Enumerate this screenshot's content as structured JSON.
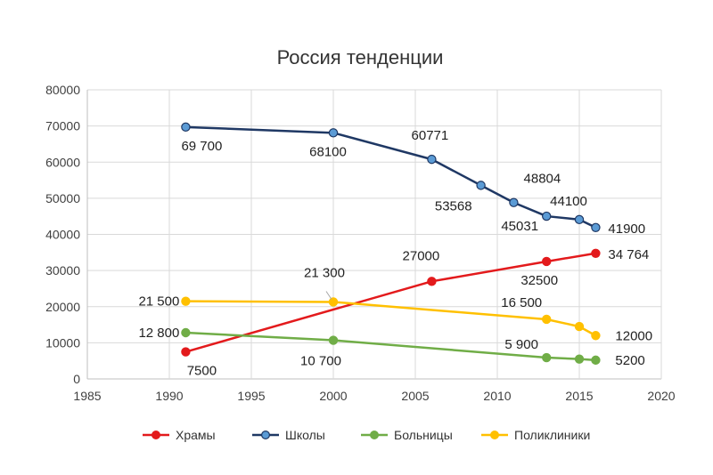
{
  "chart_data": {
    "type": "scatter",
    "title": "Россия тенденции",
    "xlim": [
      1985,
      2020
    ],
    "ylim": [
      0,
      80000
    ],
    "x_ticks": [
      "1985",
      "1990",
      "1995",
      "2000",
      "2005",
      "2010",
      "2015",
      "2020"
    ],
    "y_ticks": [
      "0",
      "10000",
      "20000",
      "30000",
      "40000",
      "50000",
      "60000",
      "70000",
      "80000"
    ],
    "grid": true,
    "legend_position": "bottom",
    "series": [
      {
        "name": "Храмы",
        "color": "#e31a1c",
        "x": [
          1991,
          2006,
          2013,
          2016
        ],
        "y": [
          7500,
          27000,
          32500,
          34764
        ],
        "labels": [
          "7500",
          "27000",
          "32500",
          "34 764"
        ]
      },
      {
        "name": "Школы",
        "color": "#1f3864",
        "marker_color": "#5b9bd5",
        "x": [
          1991,
          2000,
          2006,
          2009,
          2011,
          2013,
          2015,
          2016
        ],
        "y": [
          69700,
          68100,
          60771,
          53568,
          48804,
          45031,
          44100,
          41900
        ],
        "labels": [
          "69 700",
          "68100",
          "60771",
          "53568",
          "48804",
          "45031",
          "44100",
          "41900"
        ]
      },
      {
        "name": "Больницы",
        "color": "#70ad47",
        "x": [
          1991,
          2000,
          2013,
          2015,
          2016
        ],
        "y": [
          12800,
          10700,
          5900,
          5500,
          5200
        ],
        "labels": [
          "12 800",
          "10 700",
          "5 900",
          "",
          "5200"
        ]
      },
      {
        "name": "Поликлиники",
        "color": "#ffc000",
        "x": [
          1991,
          2000,
          2013,
          2015,
          2016
        ],
        "y": [
          21500,
          21300,
          16500,
          14500,
          12000
        ],
        "labels": [
          "21 500",
          "21 300",
          "16 500",
          "",
          "12000"
        ]
      }
    ]
  }
}
